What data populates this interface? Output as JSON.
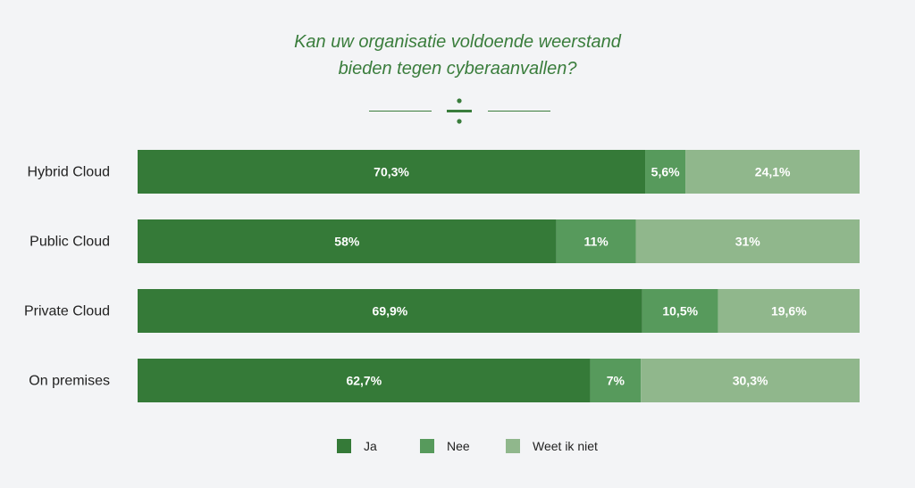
{
  "title_lines": [
    "Kan uw organisatie voldoende weerstand",
    "bieden tegen cyberaanvallen?"
  ],
  "colors": {
    "ja": "#357a38",
    "nee": "#579a5c",
    "weet_ik_niet": "#90b78c",
    "title": "#3a7d3c",
    "background": "#f3f4f6"
  },
  "chart_data": {
    "type": "bar",
    "orientation": "horizontal",
    "stacked": true,
    "categories": [
      "Hybrid Cloud",
      "Public Cloud",
      "Private Cloud",
      "On premises"
    ],
    "series": [
      {
        "name": "Ja",
        "values": [
          70.3,
          58,
          69.9,
          62.7
        ],
        "labels": [
          "70,3%",
          "58%",
          "69,9%",
          "62,7%"
        ]
      },
      {
        "name": "Nee",
        "values": [
          5.6,
          11,
          10.5,
          7
        ],
        "labels": [
          "5,6%",
          "11%",
          "10,5%",
          "7%"
        ]
      },
      {
        "name": "Weet ik niet",
        "values": [
          24.1,
          31,
          19.6,
          30.3
        ],
        "labels": [
          "24,1%",
          "31%",
          "19,6%",
          "30,3%"
        ]
      }
    ],
    "title": "Kan uw organisatie voldoende weerstand bieden tegen cyberaanvallen?",
    "xlim": [
      0,
      100
    ],
    "grid": false,
    "legend_position": "bottom"
  },
  "legend": [
    "Ja",
    "Nee",
    "Weet ik niet"
  ]
}
